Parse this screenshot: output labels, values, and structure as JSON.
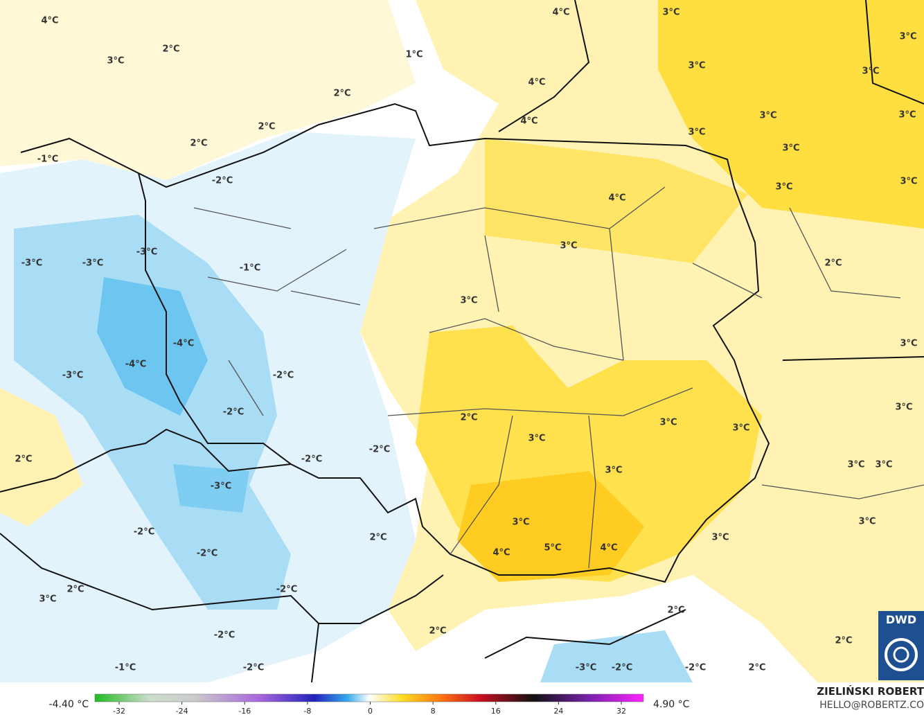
{
  "map": {
    "labels": [
      "4°C",
      "2°C",
      "3°C",
      "1°C",
      "4°C",
      "3°C",
      "3°C",
      "3°C",
      "3°C",
      "4°C",
      "2°C",
      "3°C",
      "3°C",
      "2°C",
      "4°C",
      "3°C",
      "3°C",
      "2°C",
      "-1°C",
      "-2°C",
      "3°C",
      "3°C",
      "4°C",
      "-3°C",
      "3°C",
      "-3°C",
      "-3°C",
      "-1°C",
      "2°C",
      "3°C",
      "3°C",
      "-4°C",
      "-4°C",
      "-3°C",
      "-2°C",
      "-2°C",
      "3°C",
      "2°C",
      "3°C",
      "3°C",
      "3°C",
      "-2°C",
      "2°C",
      "-2°C",
      "3°C",
      "3°C",
      "3°C",
      "-3°C",
      "3°C",
      "3°C",
      "-2°C",
      "2°C",
      "3°C",
      "5°C",
      "4°C",
      "4°C",
      "-2°C",
      "2°C",
      "-2°C",
      "3°C",
      "2°C",
      "2°C",
      "-2°C",
      "2°C",
      "-1°C",
      "-2°C",
      "-3°C",
      "-2°C",
      "-2°C",
      "2°C"
    ]
  },
  "colorbar": {
    "min_label": "-4.40 °C",
    "max_label": "4.90 °C",
    "ticks": [
      -32,
      -24,
      -16,
      -8,
      0,
      8,
      16,
      24,
      32
    ]
  },
  "credit": {
    "name": "ZIELIŃSKI ROBERT",
    "email": "HELLO@ROBERTZ.CO",
    "logo": "DWD"
  }
}
